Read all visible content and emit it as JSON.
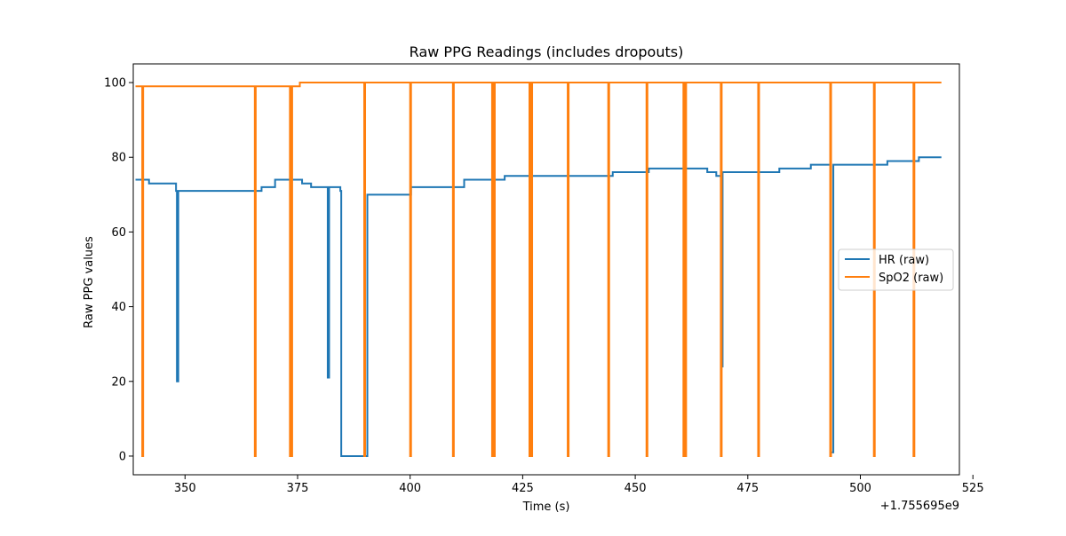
{
  "chart_data": {
    "type": "line",
    "title": "Raw PPG Readings (includes dropouts)",
    "xlabel": "Time (s)",
    "ylabel": "Raw PPG values",
    "x_offset_label": "+1.755695e9",
    "xlim": [
      338.5,
      522
    ],
    "ylim": [
      -5,
      105
    ],
    "x_ticks": [
      350,
      375,
      400,
      425,
      450,
      475,
      500,
      525
    ],
    "y_ticks": [
      0,
      20,
      40,
      60,
      80,
      100
    ],
    "grid": false,
    "legend_position": "center-right",
    "series": [
      {
        "name": "HR (raw)",
        "color": "#1f77b4",
        "step": true,
        "x": [
          339,
          341,
          342,
          343,
          348,
          348.2,
          348.5,
          349,
          365,
          367,
          370,
          375,
          376,
          377,
          378,
          381.7,
          382,
          384,
          384.5,
          384.7,
          385,
          390,
          390.5,
          400,
          400.2,
          412,
          417,
          421,
          430,
          444,
          445,
          452,
          453,
          460,
          462,
          466,
          468,
          468.5,
          469.2,
          469.4,
          470,
          482,
          486,
          489,
          493,
          493.5,
          494,
          496,
          506,
          512,
          513,
          518
        ],
        "y": [
          74,
          74,
          73,
          73,
          71,
          20,
          71,
          71,
          71,
          72,
          74,
          74,
          73,
          73,
          72,
          21,
          72,
          72,
          71,
          0,
          0,
          0,
          70,
          70,
          72,
          74,
          74,
          75,
          75,
          75,
          76,
          76,
          77,
          77,
          77,
          76,
          75,
          75,
          24,
          76,
          76,
          77,
          77,
          78,
          78,
          1,
          78,
          78,
          79,
          79,
          80,
          80
        ]
      },
      {
        "name": "SpO2 (raw)",
        "color": "#ff7f0e",
        "step": true,
        "x": [
          339,
          340.5,
          340.7,
          365.5,
          365.7,
          373.3,
          373.5,
          373.6,
          373.8,
          375.5,
          389.8,
          390,
          400,
          400.2,
          409.5,
          409.7,
          418.2,
          418.4,
          418.6,
          418.8,
          426.5,
          426.7,
          426.9,
          427.1,
          435,
          435.2,
          444,
          444.2,
          452.5,
          452.7,
          460.7,
          460.9,
          461.1,
          461.3,
          469,
          469.2,
          477.3,
          477.5,
          493.3,
          493.5,
          503,
          503.2,
          511.8,
          512,
          518
        ],
        "y": [
          99,
          0,
          99,
          0,
          99,
          0,
          99,
          0,
          99,
          100,
          0,
          100,
          0,
          100,
          0,
          100,
          0,
          100,
          0,
          100,
          0,
          100,
          0,
          100,
          0,
          100,
          0,
          100,
          0,
          100,
          0,
          100,
          0,
          100,
          0,
          100,
          0,
          100,
          0,
          100,
          0,
          100,
          0,
          100,
          100
        ]
      }
    ]
  }
}
